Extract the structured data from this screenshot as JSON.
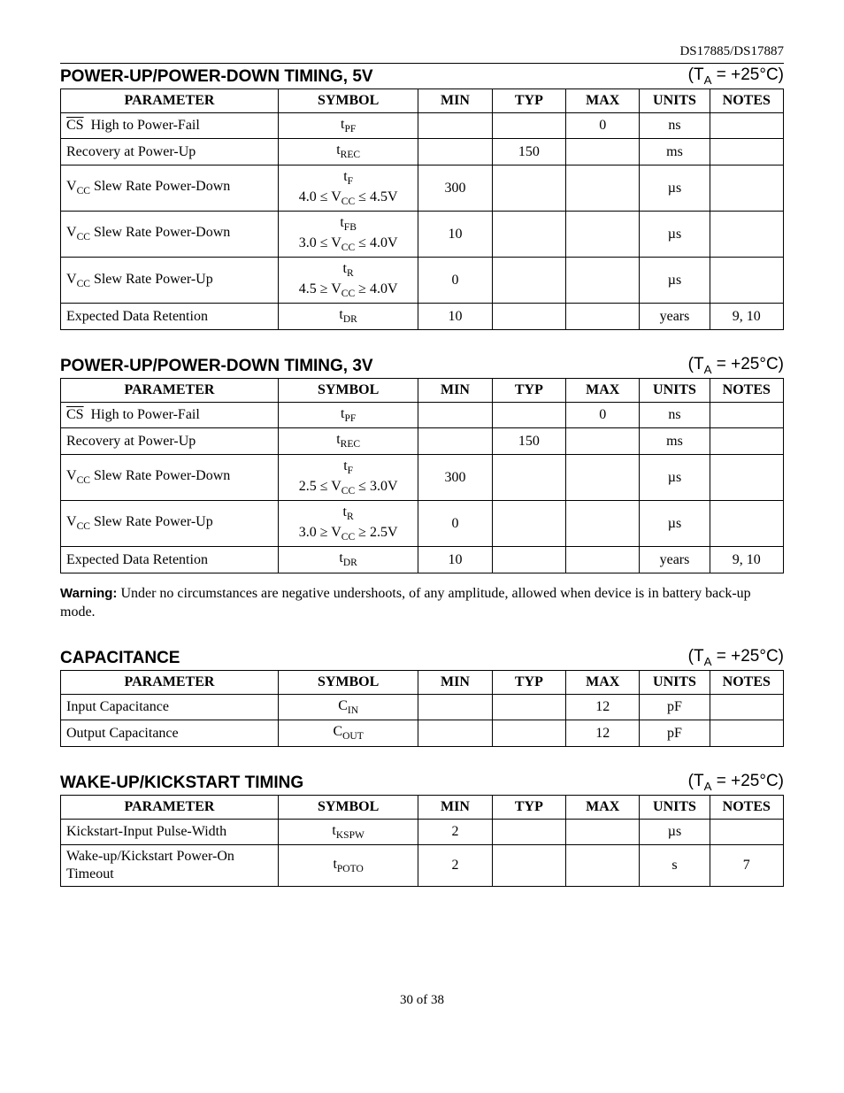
{
  "doc": {
    "header_right": "DS17885/DS17887",
    "footer": "30 of 38"
  },
  "condition": "(T<sub style='font-size:0.7em'>A</sub> = +25°C)",
  "columns": {
    "parameter": "PARAMETER",
    "symbol": "SYMBOL",
    "min": "MIN",
    "typ": "TYP",
    "max": "MAX",
    "units": "UNITS",
    "notes": "NOTES"
  },
  "sections": [
    {
      "title": "POWER-UP/POWER-DOWN TIMING, 5V",
      "rows": [
        {
          "param_html": "<span class='ovl'>CS</span>&nbsp;&nbsp;High to Power-Fail",
          "symbol_html": "t<span class='sub'>PF</span>",
          "min": "",
          "typ": "",
          "max": "0",
          "units": "ns",
          "notes": ""
        },
        {
          "param_html": "Recovery at Power-Up",
          "symbol_html": "t<span class='sub'>REC</span>",
          "min": "",
          "typ": "150",
          "max": "",
          "units": "ms",
          "notes": ""
        },
        {
          "param_html": "V<span class='sub'>CC</span> Slew Rate Power-Down",
          "symbol_html": "<span class='symline'>t<span class='sub'>F</span></span><span class='symline'>4.0 ≤ V<span class='sub'>CC</span> ≤ 4.5V</span>",
          "min": "300",
          "typ": "",
          "max": "",
          "units": "µs",
          "notes": ""
        },
        {
          "param_html": "V<span class='sub'>CC</span> Slew Rate Power-Down",
          "symbol_html": "<span class='symline'>t<span class='sub'>FB</span></span><span class='symline'>3.0 ≤ V<span class='sub'>CC</span> ≤ 4.0V</span>",
          "min": "10",
          "typ": "",
          "max": "",
          "units": "µs",
          "notes": ""
        },
        {
          "param_html": "V<span class='sub'>CC</span> Slew Rate Power-Up",
          "symbol_html": "<span class='symline'>t<span class='sub'>R</span></span><span class='symline'>4.5 ≥ V<span class='sub'>CC</span> ≥ 4.0V</span>",
          "min": "0",
          "typ": "",
          "max": "",
          "units": "µs",
          "notes": ""
        },
        {
          "param_html": "Expected Data Retention",
          "symbol_html": "t<span class='sub'>DR</span>",
          "min": "10",
          "typ": "",
          "max": "",
          "units": "years",
          "notes": "9, 10"
        }
      ]
    },
    {
      "title": "POWER-UP/POWER-DOWN TIMING, 3V",
      "rows": [
        {
          "param_html": "<span class='ovl'>CS</span>&nbsp;&nbsp;High to Power-Fail",
          "symbol_html": "t<span class='sub'>PF</span>",
          "min": "",
          "typ": "",
          "max": "0",
          "units": "ns",
          "notes": ""
        },
        {
          "param_html": "Recovery at Power-Up",
          "symbol_html": "t<span class='sub'>REC</span>",
          "min": "",
          "typ": "150",
          "max": "",
          "units": "ms",
          "notes": ""
        },
        {
          "param_html": "V<span class='sub'>CC</span> Slew Rate Power-Down",
          "symbol_html": "<span class='symline'>t<span class='sub'>F</span></span><span class='symline'>2.5 ≤ V<span class='sub'>CC</span> ≤ 3.0V</span>",
          "min": "300",
          "typ": "",
          "max": "",
          "units": "µs",
          "notes": ""
        },
        {
          "param_html": "V<span class='sub'>CC</span> Slew Rate Power-Up",
          "symbol_html": "<span class='symline'>t<span class='sub'>R</span></span><span class='symline'>3.0 ≥ V<span class='sub'>CC</span> ≥ 2.5V</span>",
          "min": "0",
          "typ": "",
          "max": "",
          "units": "µs",
          "notes": ""
        },
        {
          "param_html": "Expected Data Retention",
          "symbol_html": "t<span class='sub'>DR</span>",
          "min": "10",
          "typ": "",
          "max": "",
          "units": "years",
          "notes": "9, 10"
        }
      ]
    },
    {
      "title": "CAPACITANCE",
      "rows": [
        {
          "param_html": "Input Capacitance",
          "symbol_html": "C<span class='sub'>IN</span>",
          "min": "",
          "typ": "",
          "max": "12",
          "units": "pF",
          "notes": ""
        },
        {
          "param_html": "Output Capacitance",
          "symbol_html": "C<span class='sub'>OUT</span>",
          "min": "",
          "typ": "",
          "max": "12",
          "units": "pF",
          "notes": ""
        }
      ]
    },
    {
      "title": "WAKE-UP/KICKSTART TIMING",
      "rows": [
        {
          "param_html": "Kickstart-Input Pulse-Width",
          "symbol_html": "t<span class='sub'>KSPW</span>",
          "min": "2",
          "typ": "",
          "max": "",
          "units": "µs",
          "notes": ""
        },
        {
          "param_html": "Wake-up/Kickstart Power-On Timeout",
          "symbol_html": "t<span class='sub'>POTO</span>",
          "min": "2",
          "typ": "",
          "max": "",
          "units": "s",
          "notes": "7"
        }
      ]
    }
  ],
  "warning": {
    "label": "Warning:",
    "text": "Under no circumstances are negative undershoots, of any amplitude, allowed when device is in battery back-up mode."
  }
}
